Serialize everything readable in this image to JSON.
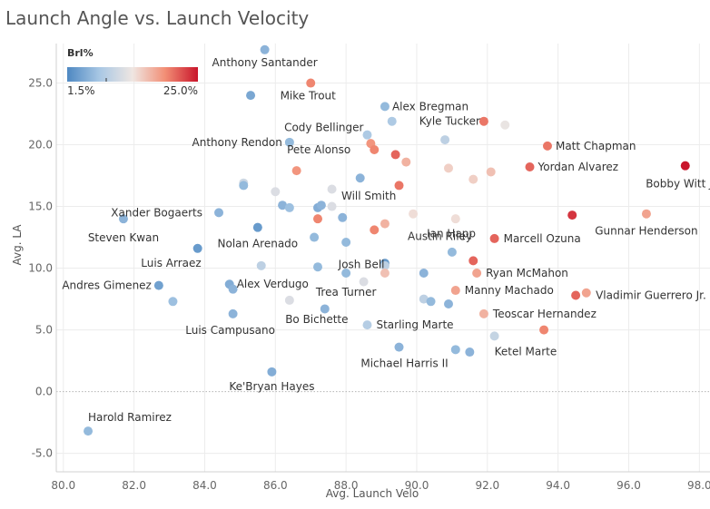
{
  "chart_data": {
    "type": "scatter",
    "title": "Launch Angle vs. Launch Velocity",
    "xlabel": "Avg. Launch Velo",
    "ylabel": "Avg. LA",
    "xlim": [
      79.8,
      98.3
    ],
    "ylim": [
      -6.5,
      28.2
    ],
    "x_ticks": [
      "80.0",
      "82.0",
      "84.0",
      "86.0",
      "88.0",
      "90.0",
      "92.0",
      "94.0",
      "96.0",
      "98.0"
    ],
    "y_ticks": [
      "-5.0",
      "0.0",
      "5.0",
      "10.0",
      "15.0",
      "20.0",
      "25.0"
    ],
    "grid": true,
    "legend": {
      "title": "Brl%",
      "min_label": "1.5%",
      "max_label": "25.0%",
      "min": 1.5,
      "max": 25.0,
      "placement": "top-left",
      "colors": [
        "#4e88c2",
        "#a9c8e4",
        "#efe6e2",
        "#f28e75",
        "#c9152b"
      ]
    },
    "points": [
      {
        "x": 85.7,
        "y": 27.7,
        "c": 5.0,
        "label": "Anthony Santander"
      },
      {
        "x": 87.0,
        "y": 25.0,
        "c": 18.0,
        "label": "Mike Trout"
      },
      {
        "x": 85.3,
        "y": 24.0,
        "c": 4.0,
        "label": ""
      },
      {
        "x": 89.1,
        "y": 23.1,
        "c": 5.5,
        "label": "Alex Bregman"
      },
      {
        "x": 91.9,
        "y": 21.9,
        "c": 19.0,
        "label": "Kyle Tucker"
      },
      {
        "x": 89.3,
        "y": 21.9,
        "c": 7.0,
        "label": ""
      },
      {
        "x": 92.5,
        "y": 21.6,
        "c": 11.0,
        "label": ""
      },
      {
        "x": 88.6,
        "y": 20.8,
        "c": 7.0,
        "label": "Cody Bellinger"
      },
      {
        "x": 90.8,
        "y": 20.4,
        "c": 8.0,
        "label": ""
      },
      {
        "x": 86.4,
        "y": 20.2,
        "c": 5.5,
        "label": "Anthony Rendon"
      },
      {
        "x": 88.7,
        "y": 20.1,
        "c": 17.0,
        "label": ""
      },
      {
        "x": 93.7,
        "y": 19.9,
        "c": 19.0,
        "label": "Matt Chapman"
      },
      {
        "x": 88.8,
        "y": 19.6,
        "c": 18.0,
        "label": "Pete Alonso"
      },
      {
        "x": 89.4,
        "y": 19.2,
        "c": 20.0,
        "label": ""
      },
      {
        "x": 89.7,
        "y": 18.6,
        "c": 15.0,
        "label": ""
      },
      {
        "x": 86.6,
        "y": 17.9,
        "c": 17.0,
        "label": ""
      },
      {
        "x": 90.9,
        "y": 18.1,
        "c": 13.0,
        "label": ""
      },
      {
        "x": 93.2,
        "y": 18.2,
        "c": 20.0,
        "label": "Yordan Alvarez"
      },
      {
        "x": 97.6,
        "y": 18.3,
        "c": 25.0,
        "label": "Bobby Witt Jr."
      },
      {
        "x": 92.1,
        "y": 17.8,
        "c": 14.0,
        "label": ""
      },
      {
        "x": 88.4,
        "y": 17.3,
        "c": 5.0,
        "label": ""
      },
      {
        "x": 91.6,
        "y": 17.2,
        "c": 13.0,
        "label": ""
      },
      {
        "x": 85.1,
        "y": 16.9,
        "c": 9.0,
        "label": ""
      },
      {
        "x": 85.1,
        "y": 16.7,
        "c": 5.5,
        "label": ""
      },
      {
        "x": 89.5,
        "y": 16.7,
        "c": 19.0,
        "label": "Austin Riley"
      },
      {
        "x": 86.0,
        "y": 16.2,
        "c": 10.0,
        "label": ""
      },
      {
        "x": 87.6,
        "y": 16.4,
        "c": 10.0,
        "label": ""
      },
      {
        "x": 86.2,
        "y": 15.1,
        "c": 5.0,
        "label": ""
      },
      {
        "x": 86.4,
        "y": 14.9,
        "c": 6.0,
        "label": ""
      },
      {
        "x": 87.2,
        "y": 14.9,
        "c": 4.5,
        "label": "Will Smith"
      },
      {
        "x": 87.3,
        "y": 15.1,
        "c": 5.0,
        "label": ""
      },
      {
        "x": 87.6,
        "y": 15.0,
        "c": 10.0,
        "label": ""
      },
      {
        "x": 84.4,
        "y": 14.5,
        "c": 5.0,
        "label": "Xander Bogaerts"
      },
      {
        "x": 81.7,
        "y": 14.0,
        "c": 5.0,
        "label": "Steven Kwan"
      },
      {
        "x": 87.2,
        "y": 14.0,
        "c": 18.0,
        "label": ""
      },
      {
        "x": 87.9,
        "y": 14.1,
        "c": 5.0,
        "label": ""
      },
      {
        "x": 89.9,
        "y": 14.4,
        "c": 12.0,
        "label": "Ian Happ"
      },
      {
        "x": 91.1,
        "y": 14.0,
        "c": 12.0,
        "label": ""
      },
      {
        "x": 94.4,
        "y": 14.3,
        "c": 23.0,
        "label": ""
      },
      {
        "x": 96.5,
        "y": 14.4,
        "c": 16.0,
        "label": "Gunnar Henderson"
      },
      {
        "x": 89.1,
        "y": 13.6,
        "c": 15.0,
        "label": ""
      },
      {
        "x": 85.5,
        "y": 13.3,
        "c": 3.0,
        "label": "Nolan Arenado"
      },
      {
        "x": 88.8,
        "y": 13.1,
        "c": 18.0,
        "label": ""
      },
      {
        "x": 92.2,
        "y": 12.4,
        "c": 20.0,
        "label": "Marcell Ozuna"
      },
      {
        "x": 83.8,
        "y": 11.6,
        "c": 3.0,
        "label": "Luis Arraez"
      },
      {
        "x": 87.1,
        "y": 12.5,
        "c": 5.5,
        "label": "Josh Bell"
      },
      {
        "x": 91.0,
        "y": 11.3,
        "c": 5.5,
        "label": ""
      },
      {
        "x": 91.6,
        "y": 10.6,
        "c": 20.0,
        "label": ""
      },
      {
        "x": 89.1,
        "y": 10.4,
        "c": 3.0,
        "label": ""
      },
      {
        "x": 89.1,
        "y": 10.2,
        "c": 8.0,
        "label": ""
      },
      {
        "x": 85.6,
        "y": 10.2,
        "c": 8.0,
        "label": ""
      },
      {
        "x": 87.2,
        "y": 10.1,
        "c": 5.5,
        "label": ""
      },
      {
        "x": 88.0,
        "y": 12.1,
        "c": 5.5,
        "label": ""
      },
      {
        "x": 88.0,
        "y": 9.6,
        "c": 5.5,
        "label": "Trea Turner"
      },
      {
        "x": 89.1,
        "y": 9.6,
        "c": 14.0,
        "label": ""
      },
      {
        "x": 90.2,
        "y": 9.6,
        "c": 5.0,
        "label": ""
      },
      {
        "x": 91.7,
        "y": 9.6,
        "c": 16.0,
        "label": "Ryan McMahon"
      },
      {
        "x": 82.7,
        "y": 8.6,
        "c": 3.5,
        "label": "Andres Gimenez"
      },
      {
        "x": 84.7,
        "y": 8.7,
        "c": 4.5,
        "label": "Alex Verdugo"
      },
      {
        "x": 84.8,
        "y": 8.3,
        "c": 5.0,
        "label": ""
      },
      {
        "x": 88.5,
        "y": 8.9,
        "c": 10.0,
        "label": ""
      },
      {
        "x": 91.1,
        "y": 8.2,
        "c": 16.0,
        "label": "Manny Machado"
      },
      {
        "x": 94.5,
        "y": 7.8,
        "c": 20.0,
        "label": "Vladimir Guerrero Jr."
      },
      {
        "x": 94.8,
        "y": 8.0,
        "c": 16.0,
        "label": ""
      },
      {
        "x": 83.1,
        "y": 7.3,
        "c": 6.0,
        "label": ""
      },
      {
        "x": 86.4,
        "y": 7.4,
        "c": 10.0,
        "label": "Bo Bichette"
      },
      {
        "x": 90.2,
        "y": 7.5,
        "c": 8.0,
        "label": ""
      },
      {
        "x": 90.4,
        "y": 7.3,
        "c": 5.5,
        "label": ""
      },
      {
        "x": 90.9,
        "y": 7.1,
        "c": 5.0,
        "label": ""
      },
      {
        "x": 87.4,
        "y": 6.7,
        "c": 5.0,
        "label": ""
      },
      {
        "x": 84.8,
        "y": 6.3,
        "c": 5.0,
        "label": "Luis Campusano"
      },
      {
        "x": 91.9,
        "y": 6.3,
        "c": 15.0,
        "label": "Teoscar Hernandez"
      },
      {
        "x": 88.6,
        "y": 5.4,
        "c": 7.5,
        "label": "Starling Marte"
      },
      {
        "x": 93.6,
        "y": 5.0,
        "c": 18.0,
        "label": ""
      },
      {
        "x": 92.2,
        "y": 4.5,
        "c": 8.5,
        "label": "Ketel Marte"
      },
      {
        "x": 89.5,
        "y": 3.6,
        "c": 5.0,
        "label": "Michael Harris II"
      },
      {
        "x": 91.1,
        "y": 3.4,
        "c": 5.5,
        "label": ""
      },
      {
        "x": 91.5,
        "y": 3.2,
        "c": 5.0,
        "label": ""
      },
      {
        "x": 85.9,
        "y": 1.6,
        "c": 4.5,
        "label": "Ke'Bryan Hayes"
      },
      {
        "x": 80.7,
        "y": -3.2,
        "c": 5.5,
        "label": "Harold Ramirez"
      }
    ]
  }
}
